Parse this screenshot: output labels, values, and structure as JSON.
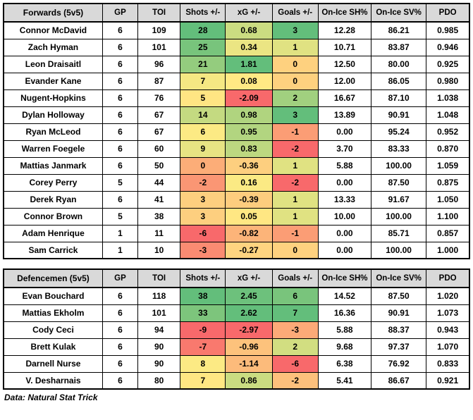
{
  "colors": {
    "header_bg": "#D9D9D9",
    "border": "#000000",
    "scale_min_red": "#F8696B",
    "scale_mid_yellow": "#FFEB84",
    "scale_max_green": "#63BE7B"
  },
  "footer": {
    "source_note": "Data: Natural Stat Trick"
  },
  "chart_data": [
    {
      "type": "table",
      "title": "Forwards (5v5)",
      "columns": [
        "GP",
        "TOI",
        "Shots +/-",
        "xG +/-",
        "Goals +/-",
        "On-Ice SH%",
        "On-Ice SV%",
        "PDO"
      ],
      "heatmap_columns": [
        "Shots +/-",
        "xG +/-",
        "Goals +/-"
      ],
      "rows": [
        {
          "player": "Connor McDavid",
          "gp": "6",
          "toi": "109",
          "shots": {
            "v": "28",
            "bg": "#63BE7B"
          },
          "xg": {
            "v": "0.68",
            "bg": "#CBDC81"
          },
          "goals": {
            "v": "3",
            "bg": "#63BE7B"
          },
          "onice_sh": "12.28",
          "onice_sv": "86.21",
          "pdo": "0.985"
        },
        {
          "player": "Zach Hyman",
          "gp": "6",
          "toi": "101",
          "shots": {
            "v": "25",
            "bg": "#78C47C"
          },
          "xg": {
            "v": "0.34",
            "bg": "#EBE583"
          },
          "goals": {
            "v": "1",
            "bg": "#E0E282"
          },
          "onice_sh": "10.71",
          "onice_sv": "83.87",
          "pdo": "0.946"
        },
        {
          "player": "Leon Draisaitl",
          "gp": "6",
          "toi": "96",
          "shots": {
            "v": "21",
            "bg": "#94CC7E"
          },
          "xg": {
            "v": "1.81",
            "bg": "#63BE7B"
          },
          "goals": {
            "v": "0",
            "bg": "#FED17F"
          },
          "onice_sh": "12.50",
          "onice_sv": "80.00",
          "pdo": "0.925"
        },
        {
          "player": "Evander Kane",
          "gp": "6",
          "toi": "87",
          "shots": {
            "v": "7",
            "bg": "#F5E883"
          },
          "xg": {
            "v": "0.08",
            "bg": "#FFE984"
          },
          "goals": {
            "v": "0",
            "bg": "#FED17F"
          },
          "onice_sh": "12.00",
          "onice_sv": "86.05",
          "pdo": "0.980"
        },
        {
          "player": "Nugent-Hopkins",
          "gp": "6",
          "toi": "76",
          "shots": {
            "v": "5",
            "bg": "#FFE583"
          },
          "xg": {
            "v": "-2.09",
            "bg": "#F8696B"
          },
          "goals": {
            "v": "2",
            "bg": "#A1D07F"
          },
          "onice_sh": "16.67",
          "onice_sv": "87.10",
          "pdo": "1.038"
        },
        {
          "player": "Dylan Holloway",
          "gp": "6",
          "toi": "67",
          "shots": {
            "v": "14",
            "bg": "#C4DA81"
          },
          "xg": {
            "v": "0.98",
            "bg": "#B0D47F"
          },
          "goals": {
            "v": "3",
            "bg": "#63BE7B"
          },
          "onice_sh": "13.89",
          "onice_sv": "90.91",
          "pdo": "1.048"
        },
        {
          "player": "Ryan McLeod",
          "gp": "6",
          "toi": "67",
          "shots": {
            "v": "6",
            "bg": "#FCEA84"
          },
          "xg": {
            "v": "0.95",
            "bg": "#B2D580"
          },
          "goals": {
            "v": "-1",
            "bg": "#FB9D75"
          },
          "onice_sh": "0.00",
          "onice_sv": "95.24",
          "pdo": "0.952"
        },
        {
          "player": "Warren Foegele",
          "gp": "6",
          "toi": "60",
          "shots": {
            "v": "9",
            "bg": "#E7E483"
          },
          "xg": {
            "v": "0.83",
            "bg": "#BDD880"
          },
          "goals": {
            "v": "-2",
            "bg": "#F8696B"
          },
          "onice_sh": "3.70",
          "onice_sv": "83.33",
          "pdo": "0.870"
        },
        {
          "player": "Mattias Janmark",
          "gp": "6",
          "toi": "50",
          "shots": {
            "v": "0",
            "bg": "#FCAD78"
          },
          "xg": {
            "v": "-0.36",
            "bg": "#FDCF7F"
          },
          "goals": {
            "v": "1",
            "bg": "#E0E282"
          },
          "onice_sh": "5.88",
          "onice_sv": "100.00",
          "pdo": "1.059"
        },
        {
          "player": "Corey Perry",
          "gp": "5",
          "toi": "44",
          "shots": {
            "v": "-2",
            "bg": "#FA9674"
          },
          "xg": {
            "v": "0.16",
            "bg": "#FBEA84"
          },
          "goals": {
            "v": "-2",
            "bg": "#F8696B"
          },
          "onice_sh": "0.00",
          "onice_sv": "87.50",
          "pdo": "0.875"
        },
        {
          "player": "Derek Ryan",
          "gp": "6",
          "toi": "41",
          "shots": {
            "v": "3",
            "bg": "#FDCF7F"
          },
          "xg": {
            "v": "-0.39",
            "bg": "#FDCD7E"
          },
          "goals": {
            "v": "1",
            "bg": "#E0E282"
          },
          "onice_sh": "13.33",
          "onice_sv": "91.67",
          "pdo": "1.050"
        },
        {
          "player": "Connor Brown",
          "gp": "5",
          "toi": "38",
          "shots": {
            "v": "3",
            "bg": "#FDCF7F"
          },
          "xg": {
            "v": "0.05",
            "bg": "#FFE783"
          },
          "goals": {
            "v": "1",
            "bg": "#E0E282"
          },
          "onice_sh": "10.00",
          "onice_sv": "100.00",
          "pdo": "1.100"
        },
        {
          "player": "Adam Henrique",
          "gp": "1",
          "toi": "11",
          "shots": {
            "v": "-6",
            "bg": "#F8696B"
          },
          "xg": {
            "v": "-0.82",
            "bg": "#FCB479"
          },
          "goals": {
            "v": "-1",
            "bg": "#FB9D75"
          },
          "onice_sh": "0.00",
          "onice_sv": "85.71",
          "pdo": "0.857"
        },
        {
          "player": "Sam Carrick",
          "gp": "1",
          "toi": "10",
          "shots": {
            "v": "-3",
            "bg": "#FA8B72"
          },
          "xg": {
            "v": "-0.27",
            "bg": "#FED480"
          },
          "goals": {
            "v": "0",
            "bg": "#FED17F"
          },
          "onice_sh": "0.00",
          "onice_sv": "100.00",
          "pdo": "1.000"
        }
      ]
    },
    {
      "type": "table",
      "title": "Defencemen (5v5)",
      "columns": [
        "GP",
        "TOI",
        "Shots +/-",
        "xG +/-",
        "Goals +/-",
        "On-Ice SH%",
        "On-Ice SV%",
        "PDO"
      ],
      "heatmap_columns": [
        "Shots +/-",
        "xG +/-",
        "Goals +/-"
      ],
      "rows": [
        {
          "player": "Evan Bouchard",
          "gp": "6",
          "toi": "118",
          "shots": {
            "v": "38",
            "bg": "#63BE7B"
          },
          "xg": {
            "v": "2.45",
            "bg": "#6DC17C"
          },
          "goals": {
            "v": "6",
            "bg": "#79C47C"
          },
          "onice_sh": "14.52",
          "onice_sv": "87.50",
          "pdo": "1.020"
        },
        {
          "player": "Mattias Ekholm",
          "gp": "6",
          "toi": "101",
          "shots": {
            "v": "33",
            "bg": "#7DC57C"
          },
          "xg": {
            "v": "2.62",
            "bg": "#63BE7B"
          },
          "goals": {
            "v": "7",
            "bg": "#63BE7B"
          },
          "onice_sh": "16.36",
          "onice_sv": "90.91",
          "pdo": "1.073"
        },
        {
          "player": "Cody Ceci",
          "gp": "6",
          "toi": "94",
          "shots": {
            "v": "-9",
            "bg": "#F8696B"
          },
          "xg": {
            "v": "-2.97",
            "bg": "#F8696B"
          },
          "goals": {
            "v": "-3",
            "bg": "#FCAA78"
          },
          "onice_sh": "5.88",
          "onice_sv": "88.37",
          "pdo": "0.943"
        },
        {
          "player": "Brett Kulak",
          "gp": "6",
          "toi": "90",
          "shots": {
            "v": "-7",
            "bg": "#F9796E"
          },
          "xg": {
            "v": "-0.96",
            "bg": "#FDC27C"
          },
          "goals": {
            "v": "2",
            "bg": "#D2DE81"
          },
          "onice_sh": "9.68",
          "onice_sv": "97.37",
          "pdo": "1.070"
        },
        {
          "player": "Darnell Nurse",
          "gp": "6",
          "toi": "90",
          "shots": {
            "v": "8",
            "bg": "#FCEA84"
          },
          "xg": {
            "v": "-1.14",
            "bg": "#FCBB7B"
          },
          "goals": {
            "v": "-6",
            "bg": "#F8696B"
          },
          "onice_sh": "6.38",
          "onice_sv": "76.92",
          "pdo": "0.833"
        },
        {
          "player": "V. Desharnais",
          "gp": "6",
          "toi": "80",
          "shots": {
            "v": "7",
            "bg": "#FFE783"
          },
          "xg": {
            "v": "0.86",
            "bg": "#CADC81"
          },
          "goals": {
            "v": "-2",
            "bg": "#FDC07C"
          },
          "onice_sh": "5.41",
          "onice_sv": "86.67",
          "pdo": "0.921"
        }
      ]
    }
  ]
}
